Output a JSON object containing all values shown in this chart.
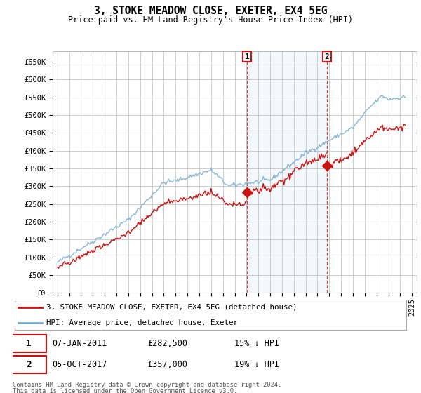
{
  "title": "3, STOKE MEADOW CLOSE, EXETER, EX4 5EG",
  "subtitle": "Price paid vs. HM Land Registry's House Price Index (HPI)",
  "ylim": [
    0,
    680000
  ],
  "sale1_date": "07-JAN-2011",
  "sale1_price": 282500,
  "sale2_date": "05-OCT-2017",
  "sale2_price": 357000,
  "sale1_pct": "15% ↓ HPI",
  "sale2_pct": "19% ↓ HPI",
  "legend_property": "3, STOKE MEADOW CLOSE, EXETER, EX4 5EG (detached house)",
  "legend_hpi": "HPI: Average price, detached house, Exeter",
  "footer1": "Contains HM Land Registry data © Crown copyright and database right 2024.",
  "footer2": "This data is licensed under the Open Government Licence v3.0.",
  "hpi_color": "#7bafd4",
  "property_color": "#cc1111",
  "shade_color": "#daeaf7",
  "grid_color": "#bbbbbb",
  "sale1_x": 2011.04,
  "sale2_x": 2017.79
}
